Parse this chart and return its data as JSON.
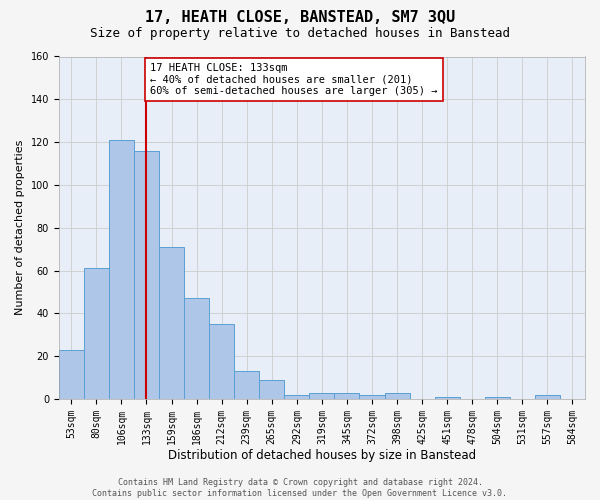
{
  "title": "17, HEATH CLOSE, BANSTEAD, SM7 3QU",
  "subtitle": "Size of property relative to detached houses in Banstead",
  "xlabel": "Distribution of detached houses by size in Banstead",
  "ylabel": "Number of detached properties",
  "footer_line1": "Contains HM Land Registry data © Crown copyright and database right 2024.",
  "footer_line2": "Contains public sector information licensed under the Open Government Licence v3.0.",
  "categories": [
    "53sqm",
    "80sqm",
    "106sqm",
    "133sqm",
    "159sqm",
    "186sqm",
    "212sqm",
    "239sqm",
    "265sqm",
    "292sqm",
    "319sqm",
    "345sqm",
    "372sqm",
    "398sqm",
    "425sqm",
    "451sqm",
    "478sqm",
    "504sqm",
    "531sqm",
    "557sqm",
    "584sqm"
  ],
  "values": [
    23,
    61,
    121,
    116,
    71,
    47,
    35,
    13,
    9,
    2,
    3,
    3,
    2,
    3,
    0,
    1,
    0,
    1,
    0,
    2,
    0
  ],
  "bar_color": "#aec6e8",
  "bar_edge_color": "#5a9fd4",
  "vertical_line_x": 3,
  "vertical_line_color": "#cc0000",
  "annotation_line1": "17 HEATH CLOSE: 133sqm",
  "annotation_line2": "← 40% of detached houses are smaller (201)",
  "annotation_line3": "60% of semi-detached houses are larger (305) →",
  "annotation_box_color": "#ffffff",
  "annotation_box_edge_color": "#cc0000",
  "ylim": [
    0,
    160
  ],
  "yticks": [
    0,
    20,
    40,
    60,
    80,
    100,
    120,
    140,
    160
  ],
  "grid_color": "#cccccc",
  "background_color": "#e8eef8",
  "fig_background_color": "#f5f5f5",
  "title_fontsize": 11,
  "subtitle_fontsize": 9,
  "xlabel_fontsize": 8.5,
  "ylabel_fontsize": 8,
  "tick_fontsize": 7,
  "annotation_fontsize": 7.5,
  "footer_fontsize": 6
}
